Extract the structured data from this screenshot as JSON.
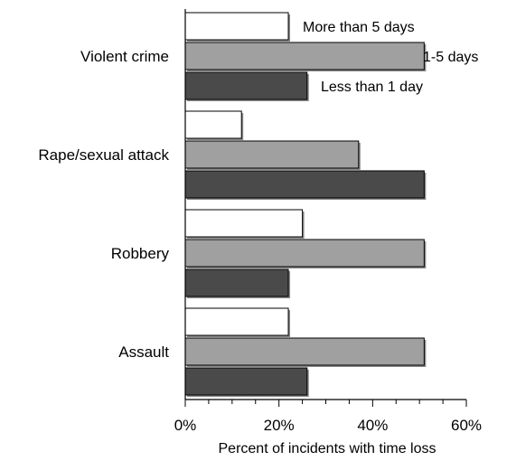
{
  "chart_data": {
    "type": "bar",
    "orientation": "horizontal",
    "categories": [
      "Violent crime",
      "Rape/sexual attack",
      "Robbery",
      "Assault"
    ],
    "series": [
      {
        "name": "More than 5 days",
        "values": [
          22,
          12,
          25,
          22
        ],
        "color": "#ffffff"
      },
      {
        "name": "1-5 days",
        "values": [
          51,
          37,
          51,
          51
        ],
        "color": "#a0a0a0"
      },
      {
        "name": "Less than 1 day",
        "values": [
          26,
          51,
          22,
          26
        ],
        "color": "#4a4a4a"
      }
    ],
    "xlabel": "Percent of incidents with time loss",
    "xlim": [
      0,
      60
    ],
    "xticks": [
      "0%",
      "20%",
      "40%",
      "60%"
    ],
    "grid": false,
    "legend": "inline labels next to first group"
  }
}
